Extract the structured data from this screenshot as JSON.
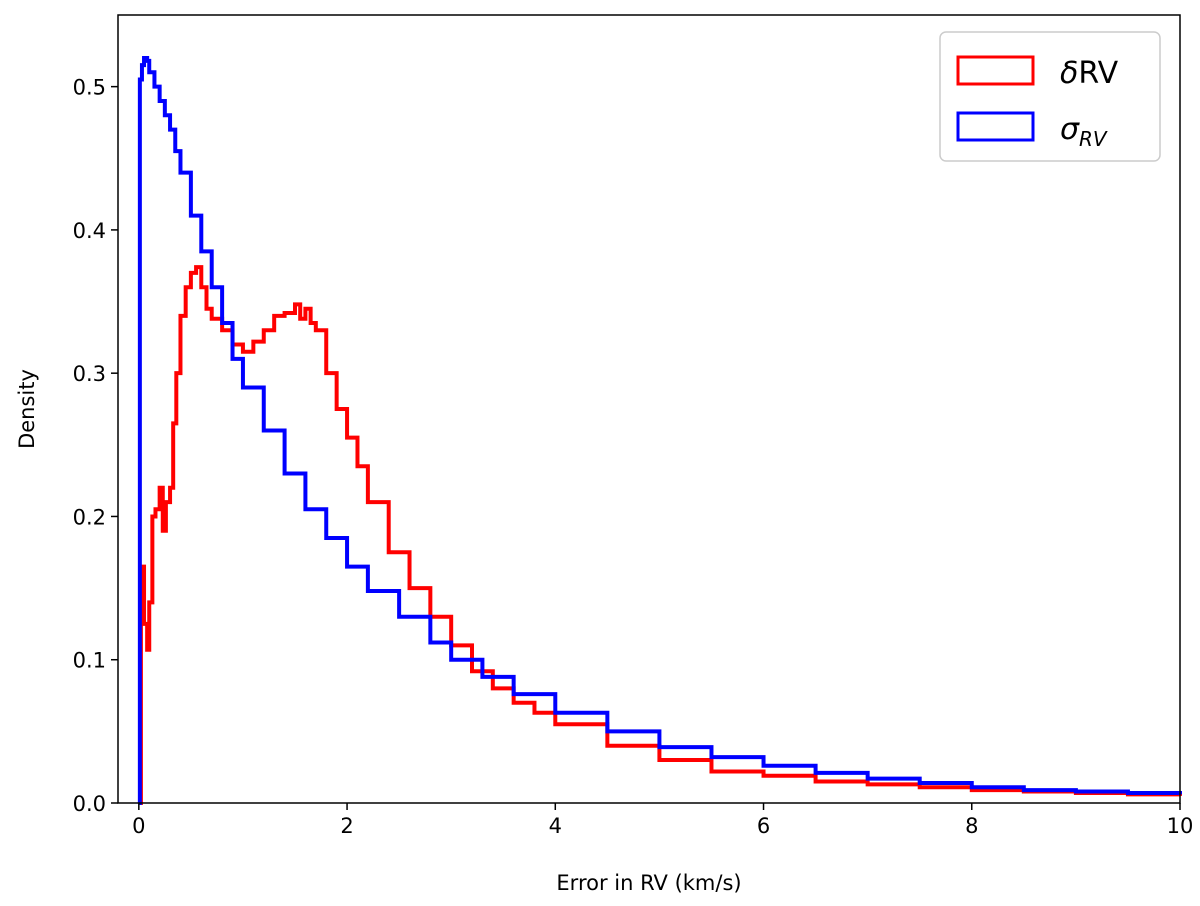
{
  "chart_data": {
    "type": "line",
    "subtype": "step-histogram",
    "title": "",
    "xlabel": "Error in RV (km/s)",
    "ylabel": "Density",
    "xlim": [
      -0.2,
      10
    ],
    "ylim": [
      0,
      0.55
    ],
    "xticks": [
      0,
      2,
      4,
      6,
      8,
      10
    ],
    "xtick_labels": [
      "0",
      "2",
      "4",
      "6",
      "8",
      "10"
    ],
    "yticks": [
      0.0,
      0.1,
      0.2,
      0.3,
      0.4,
      0.5
    ],
    "ytick_labels": [
      "0.0",
      "0.1",
      "0.2",
      "0.3",
      "0.4",
      "0.5"
    ],
    "grid": false,
    "legend_position": "top-right",
    "series": [
      {
        "name": "δRV",
        "legend_main": "δ",
        "legend_rest": "RV",
        "color": "#ff0000",
        "x": [
          0.0,
          0.02,
          0.05,
          0.08,
          0.1,
          0.13,
          0.16,
          0.2,
          0.23,
          0.26,
          0.3,
          0.33,
          0.36,
          0.4,
          0.45,
          0.5,
          0.55,
          0.6,
          0.65,
          0.7,
          0.8,
          0.9,
          1.0,
          1.1,
          1.2,
          1.3,
          1.4,
          1.5,
          1.55,
          1.6,
          1.65,
          1.7,
          1.8,
          1.9,
          2.0,
          2.1,
          2.2,
          2.4,
          2.6,
          2.8,
          3.0,
          3.2,
          3.4,
          3.6,
          3.8,
          4.0,
          4.5,
          5.0,
          5.5,
          6.0,
          6.5,
          7.0,
          7.5,
          8.0,
          8.5,
          9.0,
          9.5,
          10.0
        ],
        "y": [
          0.0,
          0.165,
          0.125,
          0.107,
          0.14,
          0.2,
          0.205,
          0.22,
          0.19,
          0.21,
          0.22,
          0.265,
          0.3,
          0.34,
          0.36,
          0.37,
          0.374,
          0.36,
          0.345,
          0.338,
          0.33,
          0.32,
          0.315,
          0.322,
          0.33,
          0.34,
          0.342,
          0.348,
          0.338,
          0.345,
          0.335,
          0.33,
          0.3,
          0.275,
          0.255,
          0.235,
          0.21,
          0.175,
          0.15,
          0.13,
          0.11,
          0.092,
          0.08,
          0.07,
          0.063,
          0.055,
          0.04,
          0.03,
          0.022,
          0.019,
          0.015,
          0.013,
          0.011,
          0.009,
          0.008,
          0.007,
          0.006,
          0.005
        ]
      },
      {
        "name": "σRV",
        "legend_main": "σ",
        "legend_sub": "RV",
        "color": "#0000ff",
        "x": [
          0.0,
          0.01,
          0.03,
          0.05,
          0.08,
          0.1,
          0.15,
          0.2,
          0.25,
          0.3,
          0.35,
          0.4,
          0.5,
          0.6,
          0.7,
          0.8,
          0.9,
          1.0,
          1.2,
          1.4,
          1.6,
          1.8,
          2.0,
          2.2,
          2.5,
          2.8,
          3.0,
          3.3,
          3.6,
          4.0,
          4.5,
          5.0,
          5.5,
          6.0,
          6.5,
          7.0,
          7.5,
          8.0,
          8.5,
          9.0,
          9.5,
          10.0
        ],
        "y": [
          0.0,
          0.505,
          0.515,
          0.52,
          0.518,
          0.51,
          0.5,
          0.49,
          0.48,
          0.47,
          0.455,
          0.44,
          0.41,
          0.385,
          0.36,
          0.335,
          0.31,
          0.29,
          0.26,
          0.23,
          0.205,
          0.185,
          0.165,
          0.148,
          0.13,
          0.112,
          0.1,
          0.088,
          0.076,
          0.063,
          0.05,
          0.039,
          0.032,
          0.026,
          0.021,
          0.017,
          0.014,
          0.011,
          0.009,
          0.008,
          0.007,
          0.006
        ]
      }
    ]
  }
}
